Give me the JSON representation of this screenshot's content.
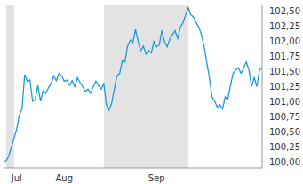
{
  "chart_data": {
    "type": "line",
    "categories": [
      null,
      null,
      null,
      null,
      null,
      "Jul",
      null,
      null,
      null,
      null,
      null,
      null,
      null,
      null,
      null,
      null,
      null,
      null,
      null,
      null,
      null,
      null,
      null,
      "Aug",
      null,
      null,
      null,
      null,
      null,
      null,
      null,
      null,
      null,
      null,
      null,
      null,
      null,
      null,
      null,
      null,
      null,
      null,
      null,
      null,
      null,
      null,
      null,
      null,
      null,
      null,
      null,
      null,
      null,
      null,
      null,
      null,
      null,
      null,
      "Sep",
      null,
      null,
      null,
      null,
      null,
      null,
      null,
      null,
      null,
      null,
      null,
      null,
      null,
      null,
      null,
      null,
      null,
      null,
      null,
      null,
      null,
      null,
      null,
      null,
      null,
      null,
      null,
      null,
      null,
      null,
      null,
      null,
      null,
      null,
      null,
      null,
      null,
      null,
      null,
      null
    ],
    "values": [
      100.0,
      100.02,
      100.1,
      100.25,
      100.4,
      100.55,
      100.78,
      100.88,
      101.45,
      101.34,
      101.36,
      101.01,
      101.03,
      101.27,
      101.01,
      101.18,
      101.14,
      101.23,
      101.3,
      101.43,
      101.35,
      101.47,
      101.43,
      101.34,
      101.36,
      101.27,
      101.35,
      101.25,
      101.4,
      101.32,
      101.25,
      101.17,
      101.21,
      101.14,
      101.25,
      101.34,
      101.27,
      101.21,
      101.3,
      100.95,
      100.86,
      100.98,
      101.21,
      101.43,
      101.47,
      101.68,
      101.66,
      101.92,
      102.02,
      101.98,
      102.2,
      102.0,
      101.85,
      101.92,
      101.79,
      101.85,
      101.81,
      102.0,
      101.91,
      101.94,
      102.18,
      102.0,
      101.91,
      102.04,
      102.11,
      102.18,
      102.05,
      102.24,
      102.31,
      102.44,
      102.56,
      102.44,
      102.41,
      102.31,
      102.24,
      102.11,
      101.92,
      101.66,
      101.4,
      101.08,
      101.01,
      100.91,
      100.95,
      100.88,
      101.08,
      101.04,
      101.27,
      101.47,
      101.53,
      101.56,
      101.47,
      101.56,
      101.66,
      101.53,
      101.25,
      101.4,
      101.25,
      101.53,
      101.56
    ],
    "color": "#1a9bd7",
    "ylim": [
      99.9,
      102.6
    ],
    "yticks": [
      {
        "value": 100,
        "label": "100,00"
      },
      {
        "value": 100.25,
        "label": "100,25"
      },
      {
        "value": 100.5,
        "label": "100,50"
      },
      {
        "value": 100.75,
        "label": "100,75"
      },
      {
        "value": 101,
        "label": "101,00"
      },
      {
        "value": 101.25,
        "label": "101,25"
      },
      {
        "value": 101.5,
        "label": "101,50"
      },
      {
        "value": 101.75,
        "label": "101,75"
      },
      {
        "value": 102,
        "label": "102,00"
      },
      {
        "value": 102.25,
        "label": "102,25"
      },
      {
        "value": 102.5,
        "label": "102,50"
      }
    ],
    "shaded_ranges": [
      [
        1,
        4
      ],
      [
        38,
        70
      ]
    ],
    "grid": false
  }
}
